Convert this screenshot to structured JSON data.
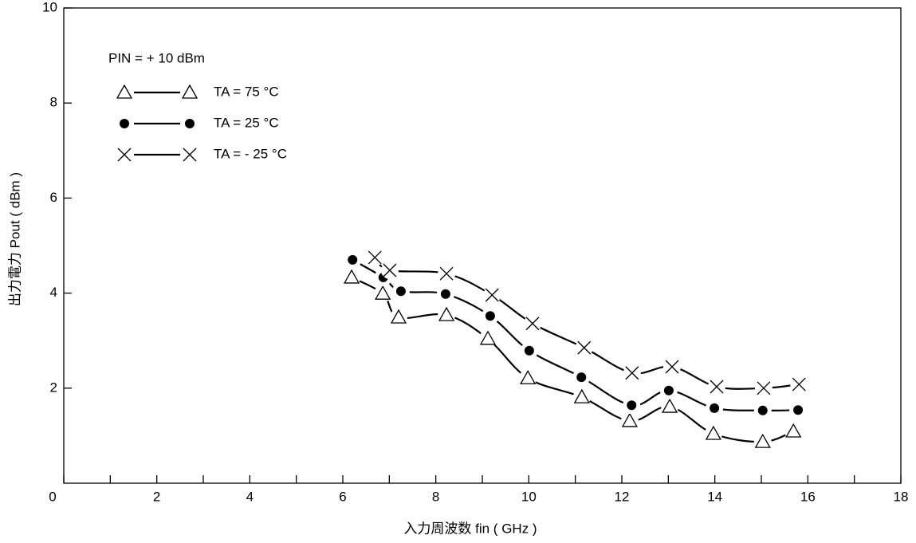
{
  "chart_data": {
    "type": "line",
    "x_label": "入力周波数 fin ( GHz )",
    "y_label": "出力電力 Pout ( dBm )",
    "annotation": "PIN = + 10 dBm",
    "legend": "upper left",
    "xlim": [
      0,
      18
    ],
    "xticks": [
      0,
      2,
      4,
      6,
      8,
      10,
      12,
      14,
      16,
      18
    ],
    "xminorticks": [
      1,
      3,
      5,
      7,
      9,
      11,
      13,
      15,
      17
    ],
    "ylim": [
      0,
      10
    ],
    "yticks": [
      2,
      4,
      6,
      8,
      10
    ],
    "series": [
      {
        "name": "TA = 75 °C",
        "marker": "triangle",
        "color": "#000000",
        "x": [
          6.19,
          6.86,
          7.2,
          8.23,
          9.12,
          9.98,
          11.14,
          12.17,
          13.03,
          13.97,
          15.03,
          15.69
        ],
        "values": [
          4.33,
          3.99,
          3.49,
          3.54,
          3.04,
          2.21,
          1.81,
          1.31,
          1.61,
          1.04,
          0.87,
          1.09
        ]
      },
      {
        "name": "TA = 25 °C",
        "marker": "dot",
        "color": "#000000",
        "x": [
          6.21,
          6.87,
          7.25,
          8.21,
          9.17,
          10.01,
          11.13,
          12.21,
          13.01,
          13.99,
          15.03,
          15.79
        ],
        "values": [
          4.7,
          4.33,
          4.04,
          3.98,
          3.52,
          2.79,
          2.23,
          1.64,
          1.95,
          1.58,
          1.53,
          1.54
        ]
      },
      {
        "name": "TA =  - 25 °C",
        "marker": "cross",
        "color": "#000000",
        "x": [
          6.69,
          7.01,
          8.23,
          9.21,
          10.08,
          11.19,
          12.22,
          13.08,
          14.04,
          15.05,
          15.81
        ],
        "values": [
          4.75,
          4.48,
          4.41,
          3.96,
          3.36,
          2.85,
          2.32,
          2.45,
          2.03,
          2.0,
          2.08
        ]
      }
    ]
  }
}
